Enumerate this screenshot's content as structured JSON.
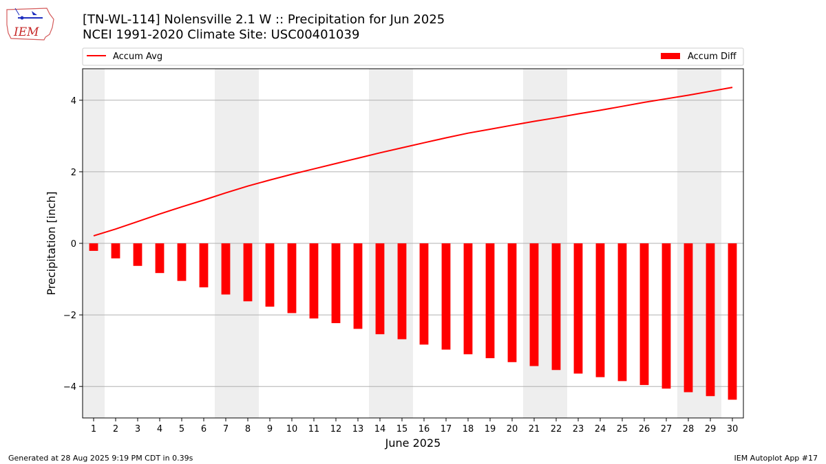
{
  "header": {
    "title_line1": "[TN-WL-114] Nolensville 2.1 W :: Precipitation for Jun 2025",
    "title_line2": "NCEI 1991-2020 Climate Site: USC00401039",
    "logo_text": "IEM"
  },
  "footer": {
    "left": "Generated at 28 Aug 2025 9:19 PM CDT in 0.39s",
    "right": "IEM Autoplot App #17"
  },
  "chart_data": {
    "type": "bar",
    "xlabel": "June 2025",
    "ylabel": "Precipitation [inch]",
    "ylim": [
      -4.88,
      4.88
    ],
    "yticks": [
      -4,
      -2,
      0,
      2,
      4
    ],
    "grid": "y",
    "legend": [
      {
        "name": "Accum Avg",
        "kind": "line",
        "color": "#ff0000",
        "placement": "top-left"
      },
      {
        "name": "Accum Diff",
        "kind": "bar",
        "color": "#ff0000",
        "placement": "top-right"
      }
    ],
    "days": [
      1,
      2,
      3,
      4,
      5,
      6,
      7,
      8,
      9,
      10,
      11,
      12,
      13,
      14,
      15,
      16,
      17,
      18,
      19,
      20,
      21,
      22,
      23,
      24,
      25,
      26,
      27,
      28,
      29,
      30
    ],
    "weekend_days": [
      1,
      7,
      8,
      14,
      15,
      21,
      22,
      28,
      29
    ],
    "series": [
      {
        "name": "Accum Avg",
        "type": "line",
        "color": "#ff0000",
        "values": [
          0.21,
          0.4,
          0.61,
          0.82,
          1.02,
          1.21,
          1.41,
          1.6,
          1.77,
          1.93,
          2.08,
          2.23,
          2.38,
          2.53,
          2.67,
          2.81,
          2.95,
          3.08,
          3.19,
          3.3,
          3.41,
          3.51,
          3.62,
          3.72,
          3.83,
          3.94,
          4.04,
          4.14,
          4.25,
          4.36
        ]
      },
      {
        "name": "Accum Diff",
        "type": "bar",
        "color": "#ff0000",
        "values": [
          -0.21,
          -0.42,
          -0.63,
          -0.83,
          -1.05,
          -1.23,
          -1.43,
          -1.62,
          -1.77,
          -1.95,
          -2.1,
          -2.23,
          -2.39,
          -2.54,
          -2.68,
          -2.83,
          -2.97,
          -3.1,
          -3.21,
          -3.32,
          -3.43,
          -3.54,
          -3.64,
          -3.74,
          -3.85,
          -3.96,
          -4.06,
          -4.16,
          -4.27,
          -4.37
        ]
      }
    ],
    "colors": {
      "weekend_shade": "#eeeeee",
      "grid": "#b0b0b0"
    }
  }
}
